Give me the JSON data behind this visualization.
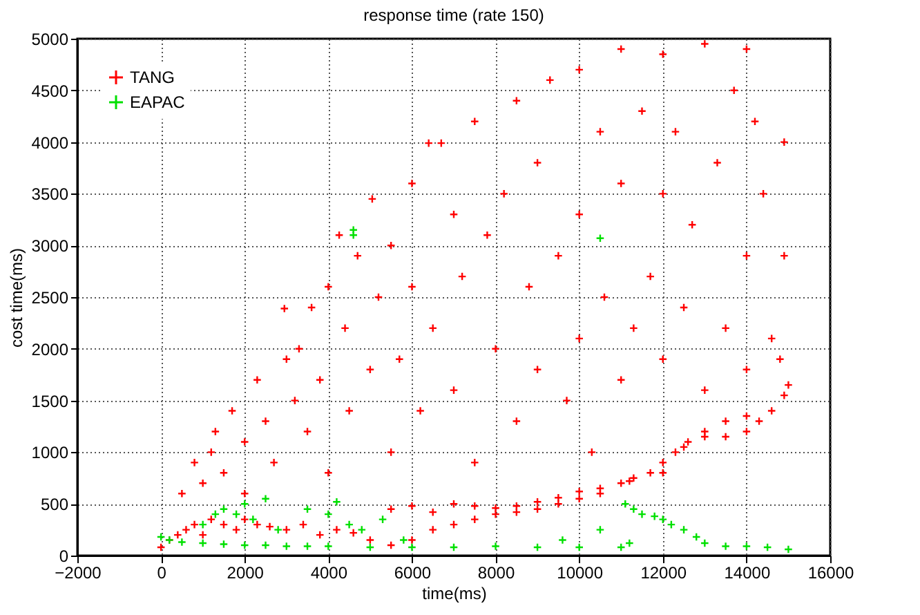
{
  "chart_data": {
    "type": "scatter",
    "title": "response time (rate 150)",
    "xlabel": "time(ms)",
    "ylabel": "cost time(ms)",
    "xlim": [
      -2000,
      16000
    ],
    "xticks": [
      -2000,
      0,
      2000,
      4000,
      6000,
      8000,
      10000,
      12000,
      14000,
      16000
    ],
    "ylim": [
      0,
      5000
    ],
    "yticks": [
      0,
      500,
      1000,
      1500,
      2000,
      2500,
      3000,
      3500,
      4000,
      4500,
      5000
    ],
    "grid": true,
    "legend": "top left",
    "marker": "cross",
    "series": [
      {
        "name": "TANG",
        "color": "#ff0000",
        "x": [
          0,
          200,
          400,
          600,
          800,
          1000,
          1200,
          1500,
          1800,
          2000,
          2300,
          2600,
          3000,
          3400,
          3800,
          4200,
          4600,
          5000,
          5500,
          6000,
          6500,
          7000,
          7500,
          8000,
          8500,
          9000,
          9500,
          10000,
          10500,
          11000,
          11300,
          11700,
          12000,
          12300,
          12600,
          13000,
          13500,
          14000,
          14300,
          14600,
          14900,
          15000,
          5500,
          6000,
          6500,
          7000,
          7500,
          8000,
          8500,
          9000,
          9500,
          10000,
          10500,
          11200,
          12000,
          12500,
          13000,
          13500,
          14000,
          500,
          800,
          1000,
          1200,
          1300,
          1500,
          1700,
          2000,
          2000,
          2300,
          2500,
          2700,
          2950,
          3000,
          3200,
          3300,
          3500,
          3600,
          3800,
          4000,
          4000,
          4260,
          4400,
          4500,
          4700,
          5000,
          5050,
          5200,
          5500,
          5500,
          5700,
          6000,
          6000,
          6200,
          6400,
          6500,
          6700,
          7000,
          7000,
          7200,
          7500,
          7500,
          7800,
          8000,
          8200,
          8500,
          8500,
          8800,
          9000,
          9000,
          9300,
          9500,
          9700,
          10000,
          10000,
          10000,
          10300,
          10500,
          10600,
          11000,
          11000,
          11000,
          11300,
          11500,
          11700,
          12000,
          12000,
          12000,
          12300,
          12500,
          12700,
          13000,
          13000,
          13300,
          13500,
          13700,
          14000,
          14000,
          14000,
          14200,
          14400,
          14600,
          14800,
          14900,
          14900
        ],
        "values": [
          80,
          150,
          200,
          250,
          300,
          200,
          350,
          300,
          250,
          350,
          300,
          280,
          250,
          300,
          200,
          250,
          220,
          150,
          100,
          150,
          250,
          300,
          350,
          400,
          420,
          450,
          500,
          550,
          600,
          700,
          750,
          800,
          900,
          1000,
          1100,
          1150,
          1150,
          1200,
          1300,
          1400,
          1550,
          1650,
          450,
          480,
          420,
          500,
          480,
          460,
          480,
          520,
          560,
          620,
          650,
          720,
          800,
          1050,
          1200,
          1300,
          1350,
          600,
          900,
          700,
          1000,
          1200,
          800,
          1400,
          1100,
          600,
          1700,
          1300,
          900,
          2390,
          1900,
          1500,
          2000,
          1200,
          2400,
          1700,
          2600,
          800,
          3100,
          2200,
          1400,
          2900,
          1800,
          3450,
          2500,
          3000,
          1000,
          1900,
          3600,
          2600,
          1400,
          3990,
          2200,
          3990,
          3300,
          1600,
          2700,
          4200,
          900,
          3100,
          2000,
          3500,
          4400,
          1300,
          2600,
          3800,
          1800,
          4600,
          2900,
          1500,
          4700,
          3300,
          2100,
          1000,
          4100,
          2500,
          4900,
          3600,
          1700,
          2200,
          4300,
          2700,
          4850,
          3500,
          1900,
          4100,
          2400,
          3200,
          4950,
          1600,
          3800,
          2200,
          4500,
          4900,
          2900,
          1800,
          4200,
          3500,
          2100,
          1900,
          4000,
          2900
        ]
      },
      {
        "name": "EAPAC",
        "color": "#00e000",
        "x": [
          0,
          200,
          500,
          1000,
          1500,
          2000,
          2500,
          3000,
          3500,
          4000,
          5000,
          6000,
          7000,
          8000,
          9000,
          9600,
          10000,
          10500,
          11000,
          11100,
          11200,
          11300,
          11500,
          11800,
          12000,
          12200,
          12500,
          12800,
          13000,
          13500,
          14000,
          14500,
          15000,
          1000,
          1300,
          1500,
          1800,
          2000,
          2200,
          2500,
          2800,
          3500,
          4000,
          4200,
          4500,
          4800,
          5300,
          5800,
          4600,
          4600,
          10500
        ],
        "values": [
          180,
          150,
          130,
          120,
          110,
          100,
          100,
          90,
          90,
          90,
          80,
          80,
          80,
          90,
          80,
          150,
          80,
          250,
          80,
          500,
          120,
          450,
          400,
          380,
          350,
          300,
          250,
          180,
          120,
          90,
          90,
          80,
          60,
          300,
          400,
          450,
          400,
          500,
          350,
          550,
          250,
          450,
          400,
          520,
          300,
          250,
          350,
          150,
          3150,
          3100,
          3070
        ]
      }
    ]
  }
}
